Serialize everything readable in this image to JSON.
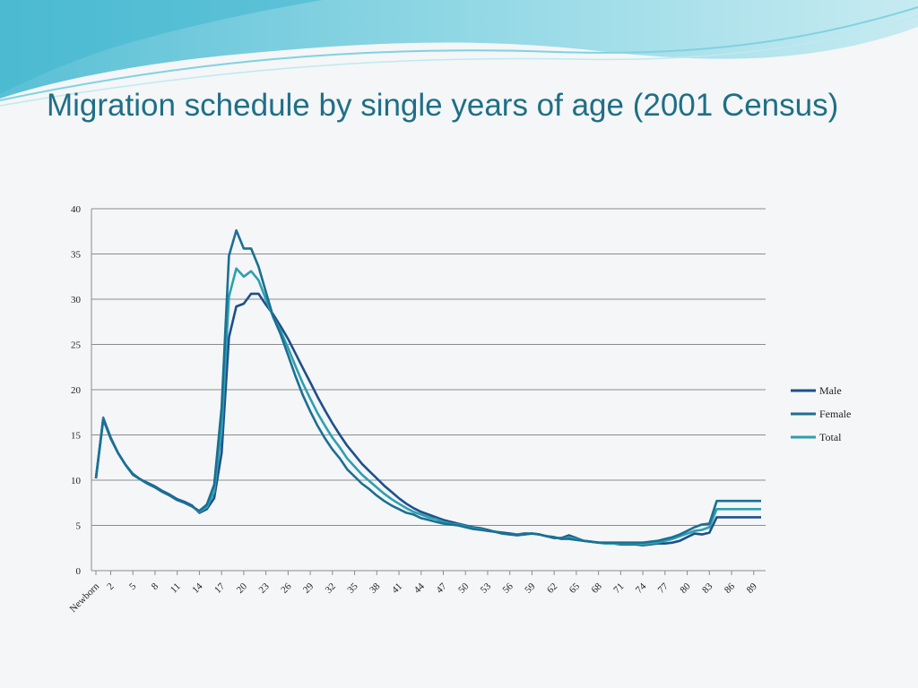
{
  "slide": {
    "title": "Migration schedule by single years of age (2001 Census)"
  },
  "colors": {
    "title": "#1f6f86",
    "male": "#1d4f8c",
    "female": "#1b6f94",
    "total": "#2e9fad",
    "grid": "#8c8c8c",
    "swoosh_light": "#bfe9f0",
    "swoosh_mid": "#7fd2e2",
    "swoosh_dark": "#3fb6cf"
  },
  "chart_data": {
    "type": "line",
    "title": "",
    "xlabel": "",
    "ylabel": "",
    "ylim": [
      0,
      40
    ],
    "yticks": [
      0,
      5,
      10,
      15,
      20,
      25,
      30,
      35,
      40
    ],
    "grid": true,
    "legend_position": "right",
    "x": [
      "Newborn",
      "1",
      "2",
      "3",
      "4",
      "5",
      "6",
      "7",
      "8",
      "9",
      "10",
      "11",
      "12",
      "13",
      "14",
      "15",
      "16",
      "17",
      "18",
      "19",
      "20",
      "21",
      "22",
      "23",
      "24",
      "25",
      "26",
      "27",
      "28",
      "29",
      "30",
      "31",
      "32",
      "33",
      "34",
      "35",
      "36",
      "37",
      "38",
      "39",
      "40",
      "41",
      "42",
      "43",
      "44",
      "45",
      "46",
      "47",
      "48",
      "49",
      "50",
      "51",
      "52",
      "53",
      "54",
      "55",
      "56",
      "57",
      "58",
      "59",
      "60",
      "61",
      "62",
      "63",
      "64",
      "65",
      "66",
      "67",
      "68",
      "69",
      "70",
      "71",
      "72",
      "73",
      "74",
      "75",
      "76",
      "77",
      "78",
      "79",
      "80",
      "81",
      "82",
      "83",
      "84",
      "85",
      "86",
      "87",
      "88",
      "89",
      "90"
    ],
    "xtick_labels": [
      "Newborn",
      "2",
      "5",
      "8",
      "11",
      "14",
      "17",
      "20",
      "23",
      "26",
      "29",
      "32",
      "35",
      "38",
      "41",
      "44",
      "47",
      "50",
      "53",
      "56",
      "59",
      "62",
      "65",
      "68",
      "71",
      "74",
      "77",
      "80",
      "83",
      "86",
      "89"
    ],
    "series": [
      {
        "name": "Male",
        "values": [
          10.2,
          16.9,
          14.7,
          13.0,
          11.7,
          10.7,
          10.1,
          9.7,
          9.3,
          8.8,
          8.4,
          7.9,
          7.6,
          7.2,
          6.4,
          6.8,
          8.0,
          13.0,
          25.8,
          29.2,
          29.5,
          30.6,
          30.6,
          29.4,
          28.3,
          27.0,
          25.6,
          24.0,
          22.4,
          20.8,
          19.2,
          17.7,
          16.3,
          15.0,
          13.8,
          12.8,
          11.8,
          11.0,
          10.2,
          9.4,
          8.7,
          8.0,
          7.4,
          6.9,
          6.5,
          6.2,
          5.9,
          5.6,
          5.4,
          5.2,
          5.0,
          4.8,
          4.7,
          4.5,
          4.3,
          4.2,
          4.1,
          4.0,
          4.1,
          4.1,
          4.0,
          3.8,
          3.6,
          3.6,
          3.9,
          3.6,
          3.3,
          3.2,
          3.1,
          3.0,
          3.0,
          2.9,
          2.9,
          2.9,
          2.8,
          2.9,
          3.0,
          3.0,
          3.1,
          3.3,
          3.7,
          4.1,
          4.0,
          4.2,
          5.9,
          5.9,
          5.9,
          5.9,
          5.9,
          5.9,
          5.9
        ]
      },
      {
        "name": "Female",
        "values": [
          10.2,
          16.7,
          14.6,
          13.0,
          11.7,
          10.6,
          10.1,
          9.6,
          9.2,
          8.7,
          8.3,
          7.8,
          7.5,
          7.1,
          6.6,
          7.3,
          9.5,
          18.0,
          34.8,
          37.6,
          35.6,
          35.6,
          33.6,
          30.8,
          28.0,
          26.1,
          23.8,
          21.5,
          19.4,
          17.6,
          16.0,
          14.6,
          13.4,
          12.4,
          11.2,
          10.4,
          9.6,
          9.0,
          8.3,
          7.7,
          7.2,
          6.8,
          6.4,
          6.2,
          5.8,
          5.6,
          5.4,
          5.2,
          5.1,
          5.0,
          4.8,
          4.6,
          4.5,
          4.4,
          4.3,
          4.1,
          4.0,
          3.9,
          4.0,
          4.1,
          4.0,
          3.8,
          3.7,
          3.5,
          3.5,
          3.4,
          3.3,
          3.2,
          3.1,
          3.1,
          3.1,
          3.1,
          3.1,
          3.1,
          3.1,
          3.2,
          3.3,
          3.5,
          3.7,
          4.0,
          4.4,
          4.8,
          5.1,
          5.2,
          7.7,
          7.7,
          7.7,
          7.7,
          7.7,
          7.7,
          7.7
        ]
      },
      {
        "name": "Total",
        "values": [
          10.2,
          16.8,
          14.6,
          13.0,
          11.7,
          10.6,
          10.1,
          9.6,
          9.2,
          8.7,
          8.3,
          7.8,
          7.5,
          7.1,
          6.5,
          7.0,
          8.7,
          15.5,
          30.3,
          33.4,
          32.5,
          33.1,
          32.1,
          30.0,
          28.0,
          26.5,
          24.6,
          22.6,
          20.7,
          19.0,
          17.4,
          16.0,
          14.7,
          13.6,
          12.4,
          11.5,
          10.6,
          9.9,
          9.2,
          8.5,
          7.9,
          7.4,
          6.9,
          6.5,
          6.2,
          5.9,
          5.7,
          5.4,
          5.2,
          5.1,
          4.9,
          4.7,
          4.6,
          4.4,
          4.3,
          4.1,
          4.0,
          4.0,
          4.0,
          4.1,
          4.0,
          3.8,
          3.7,
          3.5,
          3.7,
          3.5,
          3.3,
          3.2,
          3.1,
          3.0,
          3.0,
          3.0,
          3.0,
          3.0,
          2.9,
          3.0,
          3.1,
          3.3,
          3.5,
          3.8,
          4.1,
          4.4,
          4.5,
          4.8,
          6.8,
          6.8,
          6.8,
          6.8,
          6.8,
          6.8,
          6.8
        ]
      }
    ]
  }
}
